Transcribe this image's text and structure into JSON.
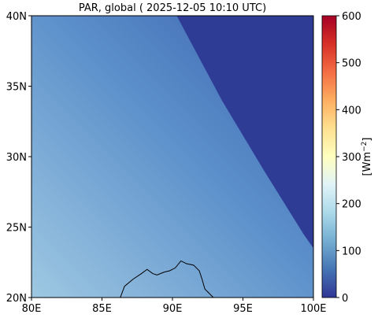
{
  "chart_data": {
    "type": "heatmap",
    "title": "PAR, global ( 2025-12-05 10:10 UTC)",
    "x": {
      "ticks": [
        "80E",
        "85E",
        "90E",
        "95E",
        "100E"
      ],
      "values": [
        80,
        85,
        90,
        95,
        100
      ],
      "range": [
        80,
        100
      ]
    },
    "y": {
      "ticks": [
        "20N",
        "25N",
        "30N",
        "35N",
        "40N"
      ],
      "values": [
        20,
        25,
        30,
        35,
        40
      ],
      "range": [
        20,
        40
      ]
    },
    "colorbar": {
      "label": "[Wm$^{-2}$]",
      "label_text": "[Wm",
      "label_sup": "−2",
      "label_close": "]",
      "range": [
        0,
        600
      ],
      "ticks": [
        "0",
        "100",
        "200",
        "300",
        "400",
        "500",
        "600"
      ],
      "tick_values": [
        0,
        100,
        200,
        300,
        400,
        500,
        600
      ],
      "colormap": "RdYlBu_r",
      "colors": [
        "#313695",
        "#4575b4",
        "#74add1",
        "#abd9e9",
        "#e0f3f8",
        "#ffffbf",
        "#fee090",
        "#fdae61",
        "#f46d43",
        "#d73027",
        "#a50026"
      ]
    },
    "field": {
      "colors": {
        "low_sw": "#9ec8e2",
        "mid": "#5b8fca",
        "high_ne": "#3a5fae",
        "night": "#2f3c95"
      },
      "terminator": [
        [
          90.3,
          40
        ],
        [
          93.5,
          34
        ],
        [
          96.5,
          29
        ],
        [
          99.3,
          24.5
        ],
        [
          100,
          23.5
        ]
      ]
    },
    "coastline": [
      [
        86.3,
        20
      ],
      [
        86.6,
        20.8
      ],
      [
        87.2,
        21.3
      ],
      [
        87.8,
        21.7
      ],
      [
        88.2,
        22.0
      ],
      [
        88.6,
        21.7
      ],
      [
        88.9,
        21.6
      ],
      [
        89.4,
        21.8
      ],
      [
        89.8,
        21.9
      ],
      [
        90.2,
        22.1
      ],
      [
        90.6,
        22.6
      ],
      [
        91.0,
        22.4
      ],
      [
        91.5,
        22.3
      ],
      [
        91.9,
        21.9
      ],
      [
        92.1,
        21.3
      ],
      [
        92.3,
        20.6
      ],
      [
        92.6,
        20.3
      ],
      [
        92.9,
        20
      ]
    ],
    "grid": false
  }
}
